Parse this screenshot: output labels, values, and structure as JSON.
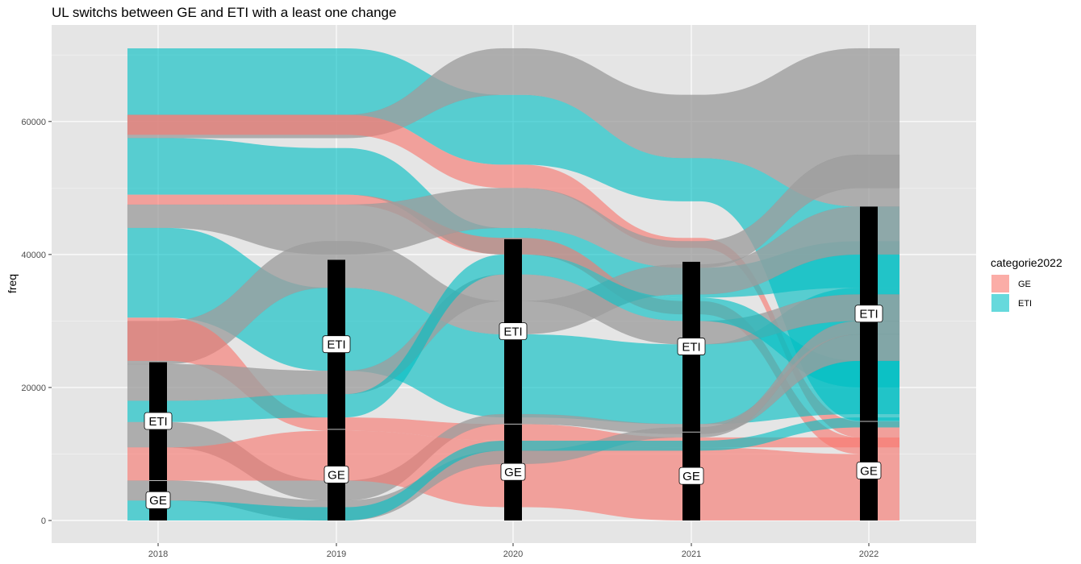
{
  "chart_data": {
    "type": "alluvial",
    "title": "UL switchs between GE and ETI with a least one change",
    "xlabel": "",
    "ylabel": "freq",
    "x": [
      "2018",
      "2019",
      "2020",
      "2021",
      "2022"
    ],
    "ylim": [
      0,
      71000
    ],
    "yticks": [
      0,
      20000,
      40000,
      60000
    ],
    "ytick_labels": [
      "0",
      "20000",
      "40000",
      "60000"
    ],
    "grid": true,
    "legend": {
      "title": "categorie2022",
      "position": "right",
      "entries": [
        {
          "label": "GE",
          "color": "#F8766D"
        },
        {
          "label": "ETI",
          "color": "#00BFC4"
        }
      ]
    },
    "missing_color": "#9E9E9E",
    "strata": [
      {
        "x": "2018",
        "categories": [
          {
            "label": "GE",
            "value": 6000
          },
          {
            "label": "ETI",
            "value": 17800
          }
        ],
        "total": 23800
      },
      {
        "x": "2019",
        "categories": [
          {
            "label": "GE",
            "value": 13700
          },
          {
            "label": "ETI",
            "value": 25500
          }
        ],
        "total": 39200
      },
      {
        "x": "2020",
        "categories": [
          {
            "label": "GE",
            "value": 14500
          },
          {
            "label": "ETI",
            "value": 27800
          }
        ],
        "total": 42300
      },
      {
        "x": "2021",
        "categories": [
          {
            "label": "GE",
            "value": 13300
          },
          {
            "label": "ETI",
            "value": 25600
          }
        ],
        "total": 38900
      },
      {
        "x": "2022",
        "categories": [
          {
            "label": "GE",
            "value": 14900
          },
          {
            "label": "ETI",
            "value": 32300
          }
        ],
        "total": 47200
      }
    ],
    "flows": [
      {
        "color": "cyan",
        "values": [
          [
            61000,
            71000
          ],
          [
            61000,
            71000
          ],
          [
            53500,
            64000
          ],
          [
            48000,
            54500
          ],
          [
            15000,
            47200
          ]
        ]
      },
      {
        "color": "grey",
        "values": [
          [
            57500,
            61000
          ],
          [
            57500,
            61000
          ],
          [
            64000,
            71000
          ],
          [
            54500,
            64000
          ],
          [
            47200,
            71000
          ]
        ]
      },
      {
        "color": "red",
        "values": [
          [
            58000,
            61000
          ],
          [
            58000,
            61000
          ],
          [
            50000,
            53500
          ],
          [
            41000,
            42500
          ],
          [
            12500,
            14900
          ]
        ]
      },
      {
        "color": "cyan",
        "values": [
          [
            49000,
            57500
          ],
          [
            49000,
            56000
          ],
          [
            40000,
            44000
          ],
          [
            33500,
            38000
          ],
          [
            35000,
            42000
          ]
        ]
      },
      {
        "color": "red",
        "values": [
          [
            47500,
            49000
          ],
          [
            47500,
            49000
          ],
          [
            40000,
            42500
          ],
          [
            31000,
            33000
          ],
          [
            10000,
            12500
          ]
        ]
      },
      {
        "color": "grey",
        "values": [
          [
            44000,
            47500
          ],
          [
            40000,
            47500
          ],
          [
            44000,
            50000
          ],
          [
            38000,
            42000
          ],
          [
            50000,
            55000
          ]
        ]
      },
      {
        "color": "cyan",
        "values": [
          [
            30500,
            44000
          ],
          [
            22500,
            35000
          ],
          [
            15500,
            28000
          ],
          [
            14500,
            26500
          ],
          [
            16000,
            35000
          ]
        ]
      },
      {
        "color": "grey",
        "values": [
          [
            23500,
            30000
          ],
          [
            35000,
            42000
          ],
          [
            28000,
            33000
          ],
          [
            34000,
            38500
          ],
          [
            40000,
            47200
          ]
        ]
      },
      {
        "color": "red",
        "values": [
          [
            24000,
            30500
          ],
          [
            13500,
            15500
          ],
          [
            12000,
            14500
          ],
          [
            11000,
            12500
          ],
          [
            11000,
            12500
          ]
        ]
      },
      {
        "color": "grey",
        "values": [
          [
            18000,
            23500
          ],
          [
            19000,
            22500
          ],
          [
            33000,
            37000
          ],
          [
            26500,
            30000
          ],
          [
            30000,
            34000
          ]
        ]
      },
      {
        "color": "cyan",
        "values": [
          [
            14800,
            18000
          ],
          [
            15500,
            19000
          ],
          [
            37000,
            40000
          ],
          [
            30000,
            33500
          ],
          [
            20000,
            24000
          ]
        ]
      },
      {
        "color": "grey",
        "values": [
          [
            11000,
            14800
          ],
          [
            3000,
            6000
          ],
          [
            14500,
            16000
          ],
          [
            13000,
            14500
          ],
          [
            24000,
            28000
          ]
        ]
      },
      {
        "color": "red",
        "values": [
          [
            6000,
            11000
          ],
          [
            6000,
            13500
          ],
          [
            2000,
            12000
          ],
          [
            0,
            11000
          ],
          [
            0,
            10000
          ]
        ]
      },
      {
        "color": "grey",
        "values": [
          [
            3000,
            6000
          ],
          [
            0,
            3000
          ],
          [
            8500,
            10500
          ],
          [
            12500,
            14000
          ],
          [
            28000,
            30000
          ]
        ]
      },
      {
        "color": "cyan",
        "values": [
          [
            0,
            3000
          ],
          [
            0,
            2000
          ],
          [
            10500,
            12000
          ],
          [
            10500,
            12000
          ],
          [
            14000,
            15500
          ]
        ]
      }
    ]
  }
}
